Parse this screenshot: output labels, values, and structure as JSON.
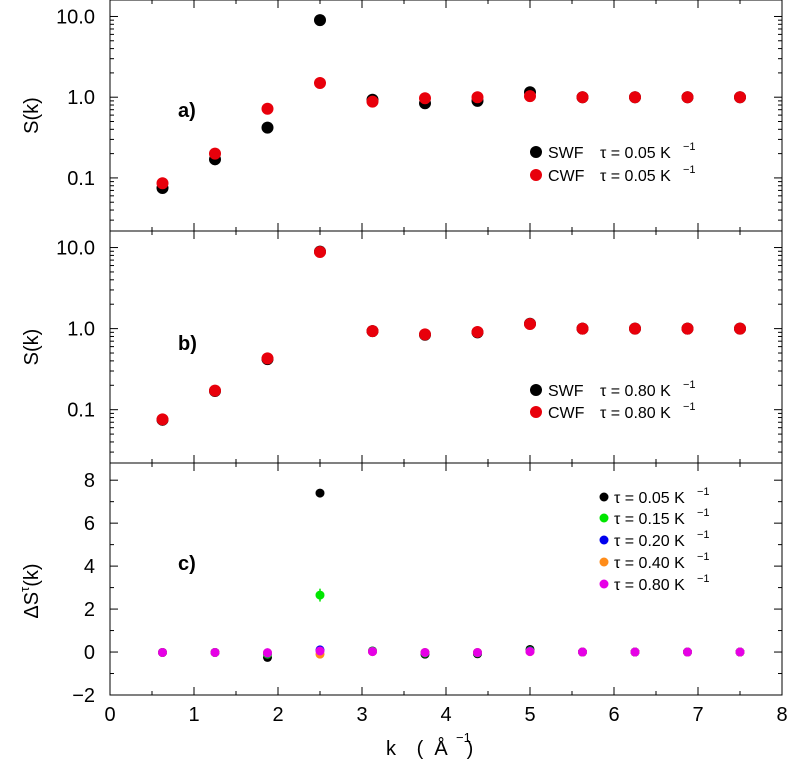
{
  "chart_data": {
    "type": "scatter",
    "x_axis": {
      "label": "k",
      "unit": "Å",
      "unit_exponent": "−1",
      "xlim": [
        0,
        8
      ],
      "ticks": [
        0,
        1,
        2,
        3,
        4,
        5,
        6,
        7,
        8
      ],
      "tick_labels": [
        "0",
        "1",
        "2",
        "3",
        "4",
        "5",
        "6",
        "7",
        "8"
      ]
    },
    "panels": [
      {
        "id": "a",
        "panel_label": "a)",
        "ylabel": "S(k)",
        "yscale": "log",
        "ylim": [
          0.022,
          16
        ],
        "yticks": [
          0.1,
          1.0,
          10.0
        ],
        "ytick_labels": [
          "0.1",
          "1.0",
          "10.0"
        ],
        "series": [
          {
            "name": "SWF",
            "tau_text": "τ = 0.05 K",
            "tau_exponent": "−1",
            "color": "#000000",
            "x": [
              0.625,
              1.25,
              1.875,
              2.5,
              3.125,
              3.75,
              4.375,
              5.0,
              5.625,
              6.25,
              6.875,
              7.5
            ],
            "y": [
              0.075,
              0.17,
              0.42,
              9.0,
              0.93,
              0.84,
              0.9,
              1.15,
              1.0,
              1.0,
              1.0,
              1.0
            ]
          },
          {
            "name": "CWF",
            "tau_text": "τ = 0.05 K",
            "tau_exponent": "−1",
            "color": "#e8000b",
            "x": [
              0.625,
              1.25,
              1.875,
              2.5,
              3.125,
              3.75,
              4.375,
              5.0,
              5.625,
              6.25,
              6.875,
              7.5
            ],
            "y": [
              0.086,
              0.2,
              0.72,
              1.5,
              0.88,
              0.97,
              1.0,
              1.03,
              1.0,
              1.0,
              1.0,
              1.0
            ]
          }
        ]
      },
      {
        "id": "b",
        "panel_label": "b)",
        "ylabel": "S(k)",
        "yscale": "log",
        "ylim": [
          0.022,
          16
        ],
        "yticks": [
          0.1,
          1.0,
          10.0
        ],
        "ytick_labels": [
          "0.1",
          "1.0",
          "10.0"
        ],
        "series": [
          {
            "name": "SWF",
            "tau_text": "τ = 0.80 K",
            "tau_exponent": "−1",
            "color": "#000000",
            "x": [
              0.625,
              1.25,
              1.875,
              2.5,
              3.125,
              3.75,
              4.375,
              5.0,
              5.625,
              6.25,
              6.875,
              7.5
            ],
            "y": [
              0.075,
              0.17,
              0.42,
              8.9,
              0.93,
              0.84,
              0.9,
              1.15,
              1.0,
              1.0,
              1.0,
              1.0
            ]
          },
          {
            "name": "CWF",
            "tau_text": "τ = 0.80 K",
            "tau_exponent": "−1",
            "color": "#e8000b",
            "x": [
              0.625,
              1.25,
              1.875,
              2.5,
              3.125,
              3.75,
              4.375,
              5.0,
              5.625,
              6.25,
              6.875,
              7.5
            ],
            "y": [
              0.076,
              0.172,
              0.43,
              8.8,
              0.93,
              0.85,
              0.91,
              1.14,
              1.0,
              1.0,
              1.0,
              1.0
            ]
          }
        ]
      },
      {
        "id": "c",
        "panel_label": "c)",
        "ylabel": "ΔS",
        "ylabel_super": "τ",
        "ylabel_suffix": "(k)",
        "yscale": "linear",
        "ylim": [
          -2,
          8.8
        ],
        "yticks": [
          -2,
          0,
          2,
          4,
          6,
          8
        ],
        "ytick_labels": [
          "−2",
          "0",
          "2",
          "4",
          "6",
          "8"
        ],
        "series": [
          {
            "name": "τ = 0.05 K",
            "tau_exponent": "−1",
            "color": "#000000",
            "x": [
              0.625,
              1.25,
              1.875,
              2.5,
              3.125,
              3.75,
              4.375,
              5.0,
              5.625,
              6.25,
              6.875,
              7.5
            ],
            "y": [
              -0.02,
              -0.02,
              -0.25,
              7.4,
              0.05,
              -0.1,
              -0.08,
              0.12,
              0.0,
              0.0,
              0.0,
              0.0
            ]
          },
          {
            "name": "τ = 0.15 K",
            "tau_exponent": "−1",
            "color": "#00e600",
            "x": [
              0.625,
              1.25,
              1.875,
              2.5,
              3.125,
              3.75,
              4.375,
              5.0,
              5.625,
              6.25,
              6.875,
              7.5
            ],
            "y": [
              -0.02,
              -0.02,
              -0.1,
              2.65,
              0.04,
              -0.05,
              -0.04,
              0.06,
              0.0,
              0.0,
              0.0,
              0.0
            ],
            "errors": [
              0,
              0,
              0,
              0.3,
              0,
              0,
              0,
              0,
              0,
              0,
              0,
              0
            ]
          },
          {
            "name": "τ = 0.20 K",
            "tau_exponent": "−1",
            "color": "#0000ee",
            "x": [
              0.625,
              1.25,
              1.875,
              2.5,
              3.125,
              3.75,
              4.375,
              5.0,
              5.625,
              6.25,
              6.875,
              7.5
            ],
            "y": [
              -0.02,
              -0.02,
              -0.06,
              0.1,
              0.03,
              -0.03,
              -0.03,
              0.04,
              0.0,
              0.0,
              0.0,
              0.0
            ]
          },
          {
            "name": "τ = 0.40 K",
            "tau_exponent": "−1",
            "color": "#ff8c1a",
            "x": [
              0.625,
              1.25,
              1.875,
              2.5,
              3.125,
              3.75,
              4.375,
              5.0,
              5.625,
              6.25,
              6.875,
              7.5
            ],
            "y": [
              -0.02,
              -0.02,
              -0.04,
              -0.1,
              0.02,
              -0.02,
              -0.02,
              0.02,
              0.0,
              0.0,
              0.0,
              0.0
            ]
          },
          {
            "name": "τ = 0.80 K",
            "tau_exponent": "−1",
            "color": "#e600e6",
            "x": [
              0.625,
              1.25,
              1.875,
              2.5,
              3.125,
              3.75,
              4.375,
              5.0,
              5.625,
              6.25,
              6.875,
              7.5
            ],
            "y": [
              -0.02,
              -0.02,
              -0.03,
              0.05,
              0.02,
              -0.02,
              -0.02,
              0.02,
              0.0,
              0.0,
              0.0,
              0.0
            ]
          }
        ]
      }
    ]
  }
}
